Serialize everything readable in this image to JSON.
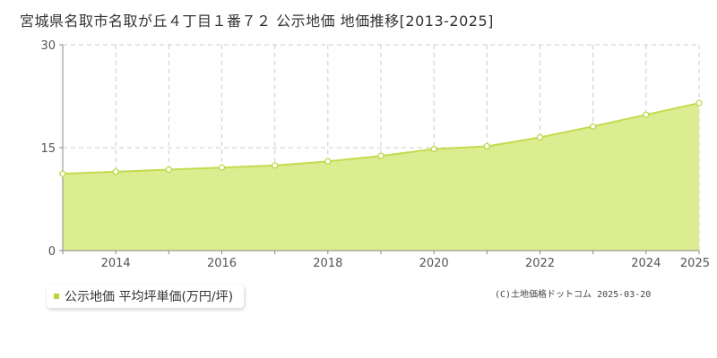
{
  "title": "宮城県名取市名取が丘４丁目１番７２ 公示地価 地価推移[2013-2025]",
  "legend": {
    "label": "公示地価 平均坪単価(万円/坪)"
  },
  "credit": "(C)土地価格ドットコム 2025-03-20",
  "colors": {
    "fill": "#dcec91",
    "line": "#c2dc4e",
    "marker_stroke": "#b8d63a",
    "grid": "#cccccc"
  },
  "chart_data": {
    "type": "area",
    "x": [
      2013,
      2014,
      2015,
      2016,
      2017,
      2018,
      2019,
      2020,
      2021,
      2022,
      2023,
      2024,
      2025
    ],
    "series": [
      {
        "name": "公示地価 平均坪単価(万円/坪)",
        "values": [
          11.2,
          11.5,
          11.8,
          12.1,
          12.4,
          13.0,
          13.8,
          14.8,
          15.2,
          16.5,
          18.1,
          19.8,
          21.5
        ]
      }
    ],
    "xlim": [
      2013,
      2025
    ],
    "ylim": [
      0,
      30
    ],
    "yticks": [
      0,
      15,
      30
    ],
    "xticks": [
      2014,
      2016,
      2018,
      2020,
      2022,
      2024,
      2025
    ],
    "xlabel": "",
    "ylabel": "",
    "grid": true
  }
}
